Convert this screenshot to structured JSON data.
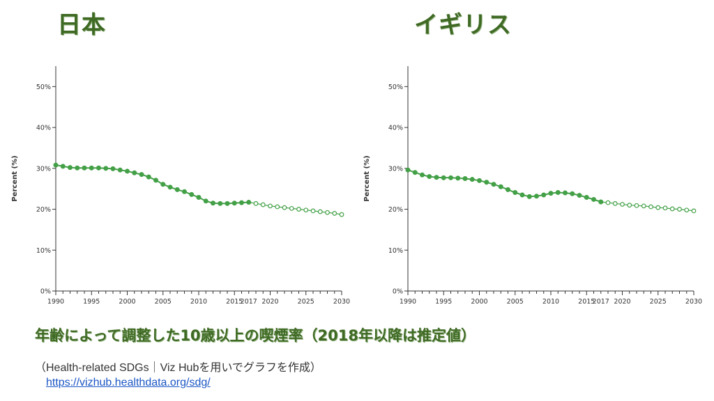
{
  "titles": {
    "left": "日本",
    "right": "イギリス"
  },
  "caption": "年齢によって調整した10歳以上の喫煙率（2018年以降は推定値）",
  "source": "（Health-related SDGs｜Viz Hubを用いでグラフを作成）",
  "source_url": "https://vizhub.healthdata.org/sdg/",
  "colors": {
    "series": "#43a047",
    "title": "#3f6a24"
  },
  "chart_data": [
    {
      "type": "line",
      "title": "日本",
      "ylabel": "Percent (%)",
      "xlabel": "",
      "xlim": [
        1990,
        2030
      ],
      "ylim": [
        0,
        55
      ],
      "x_ticks": [
        1990,
        1995,
        2000,
        2005,
        2010,
        2015,
        2017,
        2020,
        2025,
        2030
      ],
      "x_tick_labels": [
        "1990",
        "1995",
        "2000",
        "2005",
        "2010",
        "2015",
        "2017",
        "2020",
        "2025",
        "2030"
      ],
      "y_ticks": [
        0,
        10,
        20,
        30,
        40,
        50
      ],
      "y_tick_labels": [
        "0%",
        "10%",
        "20%",
        "30%",
        "40%",
        "50%"
      ],
      "grid": false,
      "series": [
        {
          "style": "solid",
          "x": [
            1990,
            1991,
            1992,
            1993,
            1994,
            1995,
            1996,
            1997,
            1998,
            1999,
            2000,
            2001,
            2002,
            2003,
            2004,
            2005,
            2006,
            2007,
            2008,
            2009,
            2010,
            2011,
            2012,
            2013,
            2014,
            2015,
            2016,
            2017
          ],
          "y": [
            30.8,
            30.5,
            30.2,
            30.1,
            30.1,
            30.1,
            30.1,
            30.0,
            29.9,
            29.6,
            29.3,
            28.9,
            28.5,
            27.9,
            27.1,
            26.1,
            25.4,
            24.8,
            24.3,
            23.6,
            22.9,
            22.0,
            21.5,
            21.4,
            21.4,
            21.5,
            21.6,
            21.7
          ]
        },
        {
          "style": "dashed",
          "x": [
            2017,
            2018,
            2019,
            2020,
            2021,
            2022,
            2023,
            2024,
            2025,
            2026,
            2027,
            2028,
            2029,
            2030
          ],
          "y": [
            21.7,
            21.4,
            21.1,
            20.8,
            20.6,
            20.4,
            20.2,
            20.0,
            19.8,
            19.6,
            19.4,
            19.2,
            19.0,
            18.7
          ]
        }
      ]
    },
    {
      "type": "line",
      "title": "イギリス",
      "ylabel": "Percent (%)",
      "xlabel": "",
      "xlim": [
        1990,
        2030
      ],
      "ylim": [
        0,
        55
      ],
      "x_ticks": [
        1990,
        1995,
        2000,
        2005,
        2010,
        2015,
        2017,
        2020,
        2025,
        2030
      ],
      "x_tick_labels": [
        "1990",
        "1995",
        "2000",
        "2005",
        "2010",
        "2015",
        "2017",
        "2020",
        "2025",
        "2030"
      ],
      "y_ticks": [
        0,
        10,
        20,
        30,
        40,
        50
      ],
      "y_tick_labels": [
        "0%",
        "10%",
        "20%",
        "30%",
        "40%",
        "50%"
      ],
      "grid": false,
      "series": [
        {
          "style": "solid",
          "x": [
            1990,
            1991,
            1992,
            1993,
            1994,
            1995,
            1996,
            1997,
            1998,
            1999,
            2000,
            2001,
            2002,
            2003,
            2004,
            2005,
            2006,
            2007,
            2008,
            2009,
            2010,
            2011,
            2012,
            2013,
            2014,
            2015,
            2016,
            2017
          ],
          "y": [
            29.6,
            29.0,
            28.4,
            28.0,
            27.8,
            27.7,
            27.7,
            27.6,
            27.5,
            27.3,
            27.0,
            26.6,
            26.1,
            25.5,
            24.8,
            24.1,
            23.5,
            23.1,
            23.2,
            23.5,
            23.9,
            24.1,
            24.0,
            23.8,
            23.4,
            22.9,
            22.4,
            21.8
          ]
        },
        {
          "style": "dashed",
          "x": [
            2017,
            2018,
            2019,
            2020,
            2021,
            2022,
            2023,
            2024,
            2025,
            2026,
            2027,
            2028,
            2029,
            2030
          ],
          "y": [
            21.8,
            21.6,
            21.4,
            21.2,
            21.0,
            20.9,
            20.8,
            20.6,
            20.4,
            20.3,
            20.1,
            20.0,
            19.8,
            19.6
          ]
        }
      ]
    }
  ]
}
